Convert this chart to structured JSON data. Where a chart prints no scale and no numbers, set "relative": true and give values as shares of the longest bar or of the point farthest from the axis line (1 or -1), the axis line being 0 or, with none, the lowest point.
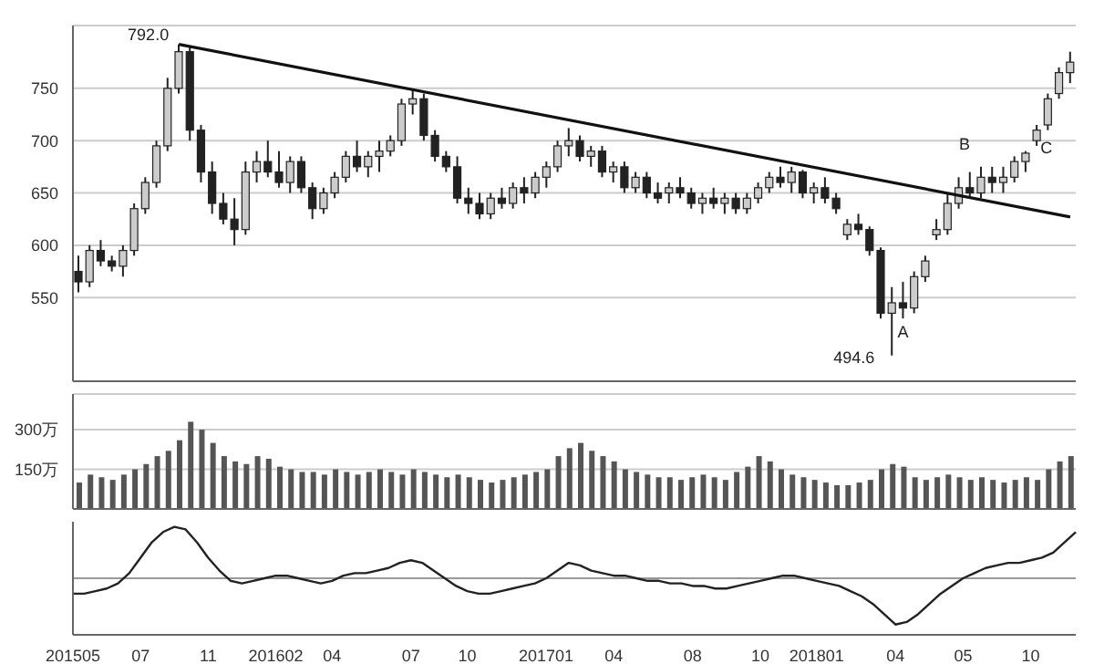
{
  "chart_data": [
    {
      "type": "candlestick",
      "categories": [
        null,
        null,
        null,
        null,
        null,
        null,
        null,
        null,
        null,
        null,
        null,
        null,
        null,
        null,
        null,
        null,
        null,
        null,
        null,
        null,
        null,
        null,
        null,
        null,
        null,
        null,
        null,
        null,
        null,
        null,
        null,
        null,
        null,
        null,
        null,
        null,
        null,
        null,
        null,
        null,
        null,
        null,
        null,
        null,
        null,
        null,
        null,
        null,
        null,
        null,
        null,
        null,
        null,
        null,
        null,
        null,
        null,
        null,
        null,
        null,
        null,
        null,
        null,
        null,
        null,
        null,
        null,
        null,
        null,
        null,
        null,
        null,
        null,
        null,
        null,
        null,
        null,
        null,
        null,
        null,
        null,
        null,
        null,
        null,
        null,
        null,
        null,
        null,
        null,
        null
      ],
      "ohlc": [
        [
          575,
          590,
          555,
          565
        ],
        [
          565,
          600,
          560,
          595
        ],
        [
          595,
          605,
          580,
          585
        ],
        [
          585,
          590,
          575,
          580
        ],
        [
          580,
          600,
          570,
          595
        ],
        [
          595,
          640,
          590,
          635
        ],
        [
          635,
          665,
          630,
          660
        ],
        [
          660,
          700,
          655,
          695
        ],
        [
          695,
          760,
          690,
          750
        ],
        [
          750,
          792,
          745,
          785
        ],
        [
          785,
          790,
          700,
          710
        ],
        [
          710,
          715,
          660,
          670
        ],
        [
          670,
          680,
          630,
          640
        ],
        [
          640,
          650,
          620,
          625
        ],
        [
          625,
          645,
          600,
          615
        ],
        [
          615,
          680,
          610,
          670
        ],
        [
          670,
          690,
          660,
          680
        ],
        [
          680,
          700,
          665,
          670
        ],
        [
          670,
          690,
          655,
          660
        ],
        [
          660,
          685,
          650,
          680
        ],
        [
          680,
          685,
          650,
          655
        ],
        [
          655,
          660,
          625,
          635
        ],
        [
          635,
          655,
          630,
          650
        ],
        [
          650,
          670,
          645,
          665
        ],
        [
          665,
          690,
          660,
          685
        ],
        [
          685,
          700,
          670,
          675
        ],
        [
          675,
          690,
          665,
          685
        ],
        [
          685,
          700,
          670,
          690
        ],
        [
          690,
          705,
          685,
          700
        ],
        [
          700,
          740,
          695,
          735
        ],
        [
          735,
          748,
          725,
          740
        ],
        [
          740,
          745,
          700,
          705
        ],
        [
          705,
          710,
          680,
          685
        ],
        [
          685,
          690,
          670,
          675
        ],
        [
          675,
          685,
          640,
          645
        ],
        [
          645,
          655,
          630,
          640
        ],
        [
          640,
          650,
          625,
          630
        ],
        [
          630,
          650,
          625,
          645
        ],
        [
          645,
          655,
          635,
          640
        ],
        [
          640,
          660,
          635,
          655
        ],
        [
          655,
          665,
          640,
          650
        ],
        [
          650,
          670,
          645,
          665
        ],
        [
          665,
          680,
          655,
          675
        ],
        [
          675,
          700,
          670,
          695
        ],
        [
          695,
          712,
          685,
          700
        ],
        [
          700,
          705,
          680,
          685
        ],
        [
          685,
          695,
          675,
          690
        ],
        [
          690,
          695,
          665,
          670
        ],
        [
          670,
          680,
          660,
          675
        ],
        [
          675,
          680,
          650,
          655
        ],
        [
          655,
          670,
          650,
          665
        ],
        [
          665,
          670,
          645,
          650
        ],
        [
          650,
          660,
          640,
          645
        ],
        [
          650,
          660,
          640,
          655
        ],
        [
          655,
          665,
          645,
          650
        ],
        [
          650,
          655,
          635,
          640
        ],
        [
          640,
          650,
          630,
          645
        ],
        [
          645,
          655,
          635,
          640
        ],
        [
          640,
          650,
          630,
          645
        ],
        [
          645,
          650,
          630,
          635
        ],
        [
          635,
          650,
          630,
          645
        ],
        [
          645,
          660,
          640,
          655
        ],
        [
          655,
          670,
          650,
          665
        ],
        [
          665,
          675,
          655,
          660
        ],
        [
          660,
          675,
          650,
          670
        ],
        [
          670,
          672,
          645,
          650
        ],
        [
          650,
          660,
          640,
          655
        ],
        [
          655,
          665,
          640,
          645
        ],
        [
          645,
          650,
          630,
          635
        ],
        [
          610,
          625,
          605,
          620
        ],
        [
          620,
          630,
          610,
          615
        ],
        [
          615,
          618,
          590,
          595
        ],
        [
          595,
          598,
          530,
          535
        ],
        [
          535,
          560,
          494.6,
          545
        ],
        [
          545,
          565,
          530,
          540
        ],
        [
          540,
          575,
          535,
          570
        ],
        [
          570,
          590,
          565,
          585
        ],
        [
          610,
          625,
          605,
          615
        ],
        [
          615,
          650,
          610,
          640
        ],
        [
          640,
          665,
          635,
          655
        ],
        [
          655,
          670,
          645,
          650
        ],
        [
          650,
          675,
          645,
          665
        ],
        [
          665,
          675,
          650,
          660
        ],
        [
          660,
          675,
          650,
          665
        ],
        [
          665,
          685,
          660,
          680
        ],
        [
          680,
          690,
          670,
          688
        ],
        [
          700,
          715,
          695,
          710
        ],
        [
          715,
          745,
          710,
          740
        ],
        [
          745,
          770,
          740,
          765
        ],
        [
          765,
          785,
          755,
          775
        ]
      ],
      "series": [
        {
          "type": "line",
          "color": "#111111",
          "values": [
            null,
            null,
            null,
            null,
            null,
            null,
            null,
            null,
            null,
            792,
            null,
            null,
            null,
            null,
            null,
            null,
            null,
            null,
            null,
            null,
            null,
            null,
            null,
            null,
            null,
            null,
            null,
            null,
            null,
            null,
            null,
            null,
            null,
            null,
            null,
            null,
            null,
            null,
            null,
            null,
            null,
            null,
            null,
            null,
            null,
            null,
            null,
            null,
            null,
            null,
            null,
            null,
            null,
            null,
            null,
            null,
            null,
            null,
            null,
            null,
            null,
            null,
            null,
            null,
            null,
            null,
            null,
            null,
            null,
            null,
            null,
            null,
            null,
            null,
            null,
            null,
            null,
            null,
            null,
            null,
            null,
            null,
            null,
            null,
            null,
            null,
            null,
            null,
            null,
            627
          ]
        }
      ],
      "ylim": [
        470,
        810
      ],
      "yticks": [
        550,
        600,
        650,
        700,
        750
      ],
      "grid": "y",
      "tick_labels": "y",
      "annotations": [
        "792.0",
        "494.6",
        "A",
        "B",
        "C"
      ]
    },
    {
      "type": "bar",
      "categories": [
        null,
        null,
        null,
        null,
        null,
        null,
        null,
        null,
        null,
        null,
        null,
        null,
        null,
        null,
        null,
        null,
        null,
        null,
        null,
        null,
        null,
        null,
        null,
        null,
        null,
        null,
        null,
        null,
        null,
        null,
        null,
        null,
        null,
        null,
        null,
        null,
        null,
        null,
        null,
        null,
        null,
        null,
        null,
        null,
        null,
        null,
        null,
        null,
        null,
        null,
        null,
        null,
        null,
        null,
        null,
        null,
        null,
        null,
        null,
        null,
        null,
        null,
        null,
        null,
        null,
        null,
        null,
        null,
        null,
        null,
        null,
        null,
        null,
        null,
        null,
        null,
        null,
        null,
        null,
        null,
        null,
        null,
        null,
        null,
        null,
        null,
        null,
        null,
        null,
        null
      ],
      "values": [
        100,
        130,
        120,
        110,
        130,
        150,
        170,
        200,
        220,
        260,
        330,
        300,
        250,
        200,
        180,
        170,
        200,
        190,
        160,
        150,
        140,
        140,
        130,
        150,
        140,
        130,
        140,
        150,
        140,
        130,
        150,
        140,
        130,
        120,
        130,
        120,
        110,
        100,
        110,
        120,
        130,
        140,
        150,
        200,
        230,
        250,
        220,
        200,
        180,
        150,
        140,
        130,
        120,
        120,
        110,
        120,
        130,
        120,
        110,
        140,
        160,
        200,
        180,
        150,
        130,
        120,
        110,
        100,
        90,
        90,
        100,
        110,
        150,
        170,
        160,
        120,
        110,
        120,
        130,
        120,
        110,
        120,
        110,
        100,
        110,
        120,
        110,
        150,
        180,
        200
      ],
      "color": "#555555",
      "ylim": [
        0,
        435
      ],
      "yticks": [
        {
          "value": 300,
          "label": "300万"
        },
        {
          "value": 150,
          "label": "150万"
        }
      ],
      "grid": "y",
      "tick_labels": "y"
    },
    {
      "type": "line",
      "relative": true,
      "categories": [
        "201505",
        null,
        null,
        null,
        null,
        null,
        "07",
        null,
        null,
        null,
        null,
        null,
        "11",
        null,
        null,
        null,
        null,
        null,
        "201602",
        null,
        null,
        null,
        null,
        "04",
        null,
        null,
        null,
        null,
        null,
        null,
        "07",
        null,
        null,
        null,
        null,
        "10",
        null,
        null,
        null,
        null,
        null,
        null,
        "201701",
        null,
        null,
        null,
        null,
        null,
        "04",
        null,
        null,
        null,
        null,
        null,
        null,
        "08",
        null,
        null,
        null,
        null,
        null,
        "10",
        null,
        null,
        null,
        null,
        "201801",
        null,
        null,
        null,
        null,
        null,
        null,
        "04",
        null,
        null,
        null,
        null,
        null,
        "05",
        null,
        null,
        null,
        null,
        null,
        "10",
        null,
        null,
        null,
        null
      ],
      "values": [
        -0.3,
        -0.3,
        -0.25,
        -0.2,
        -0.1,
        0.1,
        0.4,
        0.7,
        0.9,
        1,
        0.95,
        0.7,
        0.4,
        0.15,
        -0.05,
        -0.1,
        -0.05,
        0,
        0.05,
        0.05,
        0,
        -0.05,
        -0.1,
        -0.05,
        0.05,
        0.1,
        0.1,
        0.15,
        0.2,
        0.3,
        0.35,
        0.3,
        0.15,
        0,
        -0.15,
        -0.25,
        -0.3,
        -0.3,
        -0.25,
        -0.2,
        -0.15,
        -0.1,
        0,
        0.15,
        0.3,
        0.25,
        0.15,
        0.1,
        0.05,
        0.05,
        0,
        -0.05,
        -0.05,
        -0.1,
        -0.1,
        -0.15,
        -0.15,
        -0.2,
        -0.2,
        -0.15,
        -0.1,
        -0.05,
        0,
        0.05,
        0.05,
        0,
        -0.05,
        -0.1,
        -0.15,
        -0.25,
        -0.35,
        -0.5,
        -0.7,
        -0.9,
        -0.85,
        -0.7,
        -0.5,
        -0.3,
        -0.15,
        0,
        0.1,
        0.2,
        0.25,
        0.3,
        0.3,
        0.35,
        0.4,
        0.5,
        0.7,
        0.9
      ],
      "color": "#222222",
      "tick_labels": "x"
    }
  ]
}
